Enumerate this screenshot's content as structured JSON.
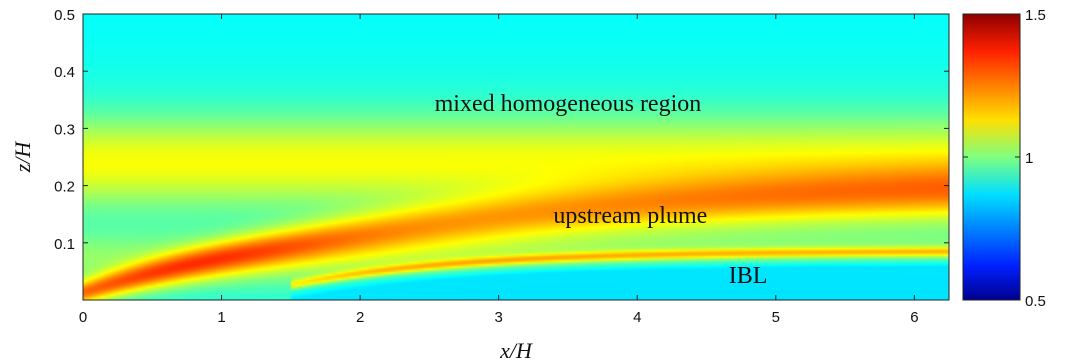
{
  "chart_data": {
    "type": "heatmap",
    "title": "",
    "xlabel": "x/H",
    "ylabel": "z/H",
    "xlim": [
      0,
      6.25
    ],
    "ylim": [
      0,
      0.5
    ],
    "xticks": [
      "0",
      "1",
      "2",
      "3",
      "4",
      "5",
      "6"
    ],
    "yticks": [
      "0.1",
      "0.2",
      "0.3",
      "0.4",
      "0.5"
    ],
    "colorbar": {
      "min": 0.5,
      "max": 1.5,
      "ticks": [
        "0.5",
        "1",
        "1.5"
      ],
      "colormap": "jet"
    },
    "annotations": [
      {
        "text": "mixed homogeneous region",
        "x": 3.5,
        "y": 0.33
      },
      {
        "text": "upstream plume",
        "x": 3.95,
        "y": 0.135
      },
      {
        "text": "IBL",
        "x": 4.8,
        "y": 0.03
      }
    ],
    "features": {
      "plume_peak": 1.4,
      "ibl_value": 0.85,
      "mixed_region_value": 1.1,
      "top_value": 0.9
    }
  }
}
